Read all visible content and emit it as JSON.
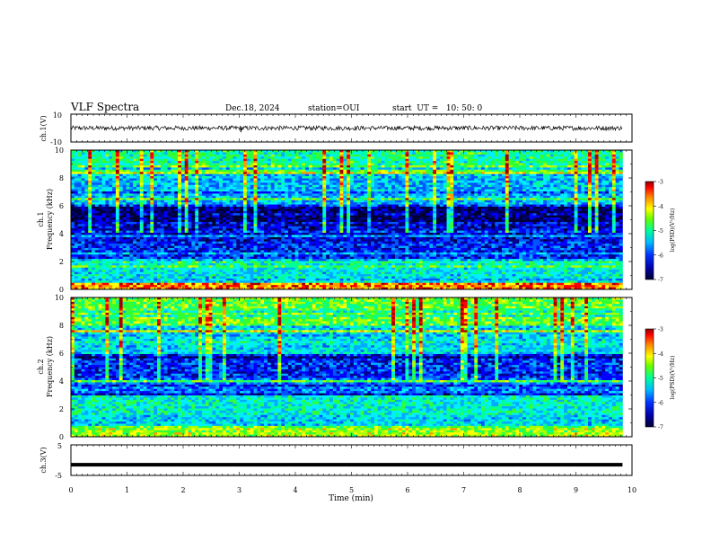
{
  "header": {
    "title": "VLF Spectra",
    "date": "Dec.18, 2024",
    "station": "station=OUI",
    "start": "start  UT =   10: 50: 0"
  },
  "colors": {
    "background": "#ffffff",
    "axis": "#000000",
    "colormap": [
      "#000033",
      "#00008b",
      "#0000ff",
      "#0066ff",
      "#00ccff",
      "#00ffaa",
      "#33ff33",
      "#aaff00",
      "#ffff00",
      "#ff9900",
      "#ff0000",
      "#aa0000"
    ]
  },
  "chart_data": [
    {
      "type": "line",
      "panel": "ch1-waveform",
      "ylabel": "ch.1(V)",
      "ylim": [
        -10,
        10
      ],
      "yticks": [
        "10",
        "-10"
      ],
      "xlim": [
        0,
        10
      ],
      "description_values": {
        "mean_level": 0,
        "approx_amplitude": 2
      }
    },
    {
      "type": "heatmap",
      "panel": "ch1-spectrogram",
      "ylabel": "ch.1\nFrequency (kHz)",
      "ylabel_line1": "ch.1",
      "ylabel_line2": "Frequency (kHz)",
      "ylim": [
        0,
        10
      ],
      "yticks": [
        "0",
        "2",
        "4",
        "6",
        "8",
        "10"
      ],
      "xlim": [
        0,
        10
      ],
      "data_end_min": 9.83,
      "colorbar": {
        "label": "log(PSD)(V²/Hz)",
        "min": -7,
        "max": -3,
        "ticks": [
          "-3",
          "-4",
          "-5",
          "-6",
          "-7"
        ]
      },
      "bands_khz": [
        {
          "from": 0,
          "to": 0.5,
          "level": -3.6
        },
        {
          "from": 0.5,
          "to": 1.5,
          "level": -5.3
        },
        {
          "from": 1.5,
          "to": 2.0,
          "level": -5.0
        },
        {
          "from": 2.0,
          "to": 3.5,
          "level": -6.2
        },
        {
          "from": 3.5,
          "to": 4.8,
          "level": -6.4
        },
        {
          "from": 4.8,
          "to": 6.0,
          "level": -6.8
        },
        {
          "from": 6.0,
          "to": 8.0,
          "level": -5.6
        },
        {
          "from": 8.0,
          "to": 10,
          "level": -5.0
        }
      ]
    },
    {
      "type": "heatmap",
      "panel": "ch2-spectrogram",
      "ylabel_line1": "ch.2",
      "ylabel_line2": "Frequency (kHz)",
      "ylim": [
        0,
        10
      ],
      "yticks": [
        "0",
        "2",
        "4",
        "6",
        "8",
        "10"
      ],
      "xlim": [
        0,
        10
      ],
      "data_end_min": 9.83,
      "colorbar": {
        "label": "log(PSD)(V²/Hz)",
        "min": -7,
        "max": -3,
        "ticks": [
          "-3",
          "-4",
          "-5",
          "-6",
          "-7"
        ]
      },
      "bands_khz": [
        {
          "from": 0,
          "to": 0.6,
          "level": -4.3
        },
        {
          "from": 0.6,
          "to": 1.6,
          "level": -5.4
        },
        {
          "from": 1.6,
          "to": 3.0,
          "level": -5.2
        },
        {
          "from": 3.0,
          "to": 4.2,
          "level": -5.9
        },
        {
          "from": 4.2,
          "to": 6.0,
          "level": -6.2
        },
        {
          "from": 6.0,
          "to": 8.0,
          "level": -5.4
        },
        {
          "from": 8.0,
          "to": 10,
          "level": -4.6
        }
      ]
    },
    {
      "type": "line",
      "panel": "ch3-waveform",
      "ylabel": "ch.3(V)",
      "ylim": [
        -5,
        5
      ],
      "yticks": [
        "5",
        "-5"
      ],
      "xlim": [
        0,
        10
      ],
      "constant_value": -1.5,
      "xlabel": "Time (min)",
      "xticks": [
        "0",
        "1",
        "2",
        "3",
        "4",
        "5",
        "6",
        "7",
        "8",
        "9",
        "10"
      ]
    }
  ]
}
